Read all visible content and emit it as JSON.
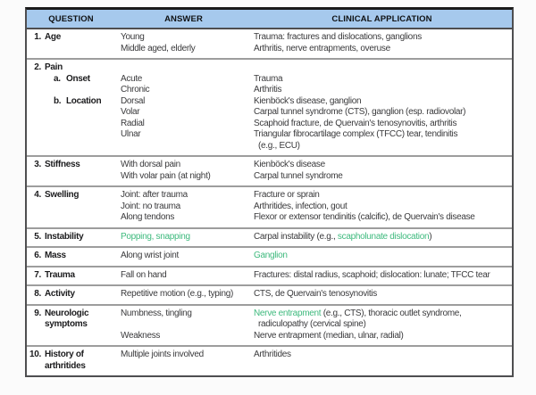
{
  "colors": {
    "header_bg": "#a6c9ed",
    "highlight_green": "#3fba7e",
    "outer_border": "#4e4e50",
    "top_border": "#1a1a1a",
    "row_separator": "#9d9d9d",
    "body_text": "#3a3a3c",
    "question_text": "#1c1c1e"
  },
  "table": {
    "header": {
      "question": "QUESTION",
      "answer": "ANSWER",
      "clinical": "CLINICAL APPLICATION"
    },
    "rows": [
      {
        "question": [
          {
            "num": "1.",
            "text": "Age"
          }
        ],
        "answer": [
          {
            "seg": [
              {
                "t": "Young"
              }
            ]
          },
          {
            "seg": [
              {
                "t": "Middle aged, elderly"
              }
            ]
          }
        ],
        "clinical": [
          {
            "seg": [
              {
                "t": "Trauma: fractures and dislocations, ganglions"
              }
            ]
          },
          {
            "seg": [
              {
                "t": "Arthritis, nerve entrapments, overuse"
              }
            ]
          }
        ]
      },
      {
        "question": [
          {
            "num": "2.",
            "text": "Pain"
          },
          {
            "sub": "a.",
            "text": "Onset"
          },
          {
            "blank": true
          },
          {
            "sub": "b.",
            "text": "Location"
          }
        ],
        "answer": [
          {
            "seg": []
          },
          {
            "seg": [
              {
                "t": "Acute"
              }
            ]
          },
          {
            "seg": [
              {
                "t": "Chronic"
              }
            ]
          },
          {
            "seg": [
              {
                "t": "Dorsal"
              }
            ]
          },
          {
            "seg": [
              {
                "t": "Volar"
              }
            ]
          },
          {
            "seg": [
              {
                "t": "Radial"
              }
            ]
          },
          {
            "seg": [
              {
                "t": "Ulnar"
              }
            ]
          }
        ],
        "clinical": [
          {
            "seg": []
          },
          {
            "seg": [
              {
                "t": "Trauma"
              }
            ]
          },
          {
            "seg": [
              {
                "t": "Arthritis"
              }
            ]
          },
          {
            "seg": [
              {
                "t": "Kienböck's disease, ganglion"
              }
            ]
          },
          {
            "seg": [
              {
                "t": "Carpal tunnel syndrome (CTS), ganglion (esp. radiovolar)"
              }
            ]
          },
          {
            "seg": [
              {
                "t": "Scaphoid fracture, de Quervain's tenosynovitis, arthritis"
              }
            ]
          },
          {
            "seg": [
              {
                "t": "Triangular fibrocartilage complex (TFCC) tear, tendinitis"
              }
            ]
          },
          {
            "indent": true,
            "seg": [
              {
                "t": "(e.g., ECU)"
              }
            ]
          }
        ]
      },
      {
        "question": [
          {
            "num": "3.",
            "text": "Stiffness"
          }
        ],
        "answer": [
          {
            "seg": [
              {
                "t": "With dorsal pain"
              }
            ]
          },
          {
            "seg": [
              {
                "t": "With volar pain (at night)"
              }
            ]
          }
        ],
        "clinical": [
          {
            "seg": [
              {
                "t": "Kienböck's disease"
              }
            ]
          },
          {
            "seg": [
              {
                "t": "Carpal tunnel syndrome"
              }
            ]
          }
        ]
      },
      {
        "question": [
          {
            "num": "4.",
            "text": "Swelling"
          }
        ],
        "answer": [
          {
            "seg": [
              {
                "t": "Joint: after trauma"
              }
            ]
          },
          {
            "seg": [
              {
                "t": "Joint: no trauma"
              }
            ]
          },
          {
            "seg": [
              {
                "t": "Along tendons"
              }
            ]
          }
        ],
        "clinical": [
          {
            "seg": [
              {
                "t": "Fracture or sprain"
              }
            ]
          },
          {
            "seg": [
              {
                "t": "Arthritides, infection, gout"
              }
            ]
          },
          {
            "seg": [
              {
                "t": "Flexor or extensor tendinitis (calcific), de Quervain's disease"
              }
            ]
          }
        ]
      },
      {
        "question": [
          {
            "num": "5.",
            "text": "Instability"
          }
        ],
        "answer": [
          {
            "seg": [
              {
                "t": "Popping, snapping",
                "green": true
              }
            ]
          }
        ],
        "clinical": [
          {
            "seg": [
              {
                "t": "Carpal instability (e.g., "
              },
              {
                "t": "scapholunate dislocation",
                "green": true
              },
              {
                "t": ")"
              }
            ]
          }
        ]
      },
      {
        "question": [
          {
            "num": "6.",
            "text": "Mass"
          }
        ],
        "answer": [
          {
            "seg": [
              {
                "t": "Along wrist joint"
              }
            ]
          }
        ],
        "clinical": [
          {
            "seg": [
              {
                "t": "Ganglion",
                "green": true
              }
            ]
          }
        ]
      },
      {
        "question": [
          {
            "num": "7.",
            "text": "Trauma"
          }
        ],
        "answer": [
          {
            "seg": [
              {
                "t": "Fall on hand"
              }
            ]
          }
        ],
        "clinical": [
          {
            "seg": [
              {
                "t": "Fractures: distal radius, scaphoid; dislocation: lunate; TFCC tear"
              }
            ]
          }
        ]
      },
      {
        "question": [
          {
            "num": "8.",
            "text": "Activity"
          }
        ],
        "answer": [
          {
            "seg": [
              {
                "t": "Repetitive motion (e.g., typing)"
              }
            ]
          }
        ],
        "clinical": [
          {
            "seg": [
              {
                "t": "CTS, de Quervain's tenosynovitis"
              }
            ]
          }
        ]
      },
      {
        "question": [
          {
            "num": "9.",
            "text": "Neurologic"
          },
          {
            "cont": "symptoms"
          }
        ],
        "answer": [
          {
            "seg": [
              {
                "t": "Numbness, tingling"
              }
            ]
          },
          {
            "seg": []
          },
          {
            "seg": [
              {
                "t": "Weakness"
              }
            ]
          }
        ],
        "clinical": [
          {
            "seg": [
              {
                "t": "Nerve entrapment",
                "green": true
              },
              {
                "t": " (e.g., CTS), thoracic outlet syndrome,"
              }
            ]
          },
          {
            "indent": true,
            "seg": [
              {
                "t": "radiculopathy (cervical spine)"
              }
            ]
          },
          {
            "seg": [
              {
                "t": "Nerve entrapment (median, ulnar, radial)"
              }
            ]
          }
        ]
      },
      {
        "question": [
          {
            "num": "10.",
            "text": "History of"
          },
          {
            "cont": "arthritides"
          }
        ],
        "answer": [
          {
            "seg": [
              {
                "t": "Multiple joints involved"
              }
            ]
          }
        ],
        "clinical": [
          {
            "seg": [
              {
                "t": "Arthritides"
              }
            ]
          }
        ]
      }
    ]
  }
}
